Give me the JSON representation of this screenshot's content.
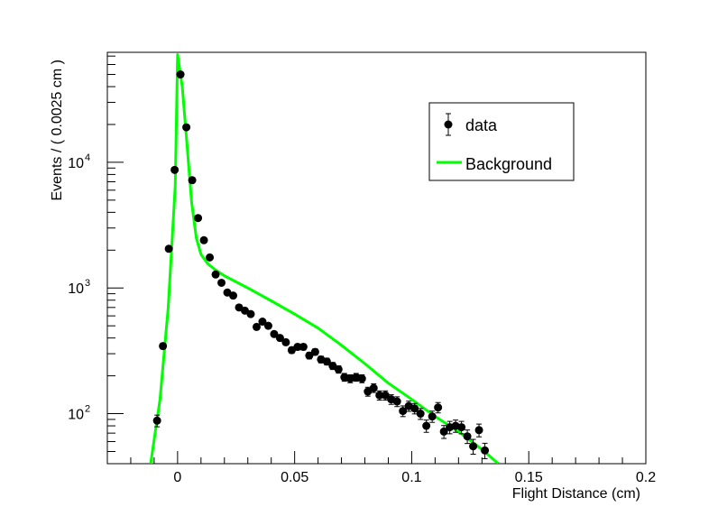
{
  "chart_data": {
    "type": "scatter",
    "title": "",
    "xlabel": "Flight Distance (cm)",
    "ylabel": "Events / ( 0.0025 cm )",
    "xlim": [
      -0.03,
      0.2
    ],
    "ylim": [
      40,
      75000
    ],
    "yscale": "log",
    "x_ticks": [
      0,
      0.05,
      0.1,
      0.15,
      0.2
    ],
    "x_tick_labels": [
      "0",
      "0.05",
      "0.1",
      "0.15",
      "0.2"
    ],
    "y_ticks": [
      100,
      1000,
      10000
    ],
    "y_tick_labels": [
      {
        "base": "10",
        "exp": "2"
      },
      {
        "base": "10",
        "exp": "3"
      },
      {
        "base": "10",
        "exp": "4"
      }
    ],
    "grid": false,
    "legend": {
      "position": "top-right",
      "entries": [
        {
          "label": "data",
          "marker": "circle-with-error",
          "color": "#000000"
        },
        {
          "label": "Background",
          "marker": "line",
          "color": "#00ff00"
        }
      ]
    },
    "series": [
      {
        "name": "data",
        "color": "#000000",
        "points": [
          [
            -0.00875,
            88
          ],
          [
            -0.00625,
            345
          ],
          [
            -0.00375,
            2050
          ],
          [
            -0.00125,
            8700
          ],
          [
            0.00125,
            50000
          ],
          [
            0.00375,
            19000
          ],
          [
            0.00625,
            7200
          ],
          [
            0.00875,
            3600
          ],
          [
            0.01125,
            2400
          ],
          [
            0.01375,
            1750
          ],
          [
            0.01625,
            1280
          ],
          [
            0.01875,
            1100
          ],
          [
            0.02125,
            920
          ],
          [
            0.02375,
            870
          ],
          [
            0.02625,
            700
          ],
          [
            0.02875,
            660
          ],
          [
            0.03125,
            620
          ],
          [
            0.03375,
            490
          ],
          [
            0.03625,
            540
          ],
          [
            0.03875,
            500
          ],
          [
            0.04125,
            430
          ],
          [
            0.04375,
            400
          ],
          [
            0.04625,
            370
          ],
          [
            0.04875,
            320
          ],
          [
            0.05125,
            340
          ],
          [
            0.05375,
            340
          ],
          [
            0.05625,
            290
          ],
          [
            0.05875,
            310
          ],
          [
            0.06125,
            270
          ],
          [
            0.06375,
            260
          ],
          [
            0.06625,
            240
          ],
          [
            0.06875,
            225
          ],
          [
            0.07125,
            195
          ],
          [
            0.07375,
            190
          ],
          [
            0.07625,
            195
          ],
          [
            0.07875,
            190
          ],
          [
            0.08125,
            150
          ],
          [
            0.08375,
            160
          ],
          [
            0.08625,
            140
          ],
          [
            0.08875,
            140
          ],
          [
            0.09125,
            130
          ],
          [
            0.09375,
            125
          ],
          [
            0.09625,
            105
          ],
          [
            0.09875,
            115
          ],
          [
            0.10125,
            110
          ],
          [
            0.10375,
            100
          ],
          [
            0.10625,
            80
          ],
          [
            0.10875,
            95
          ],
          [
            0.11125,
            112
          ],
          [
            0.11375,
            72
          ],
          [
            0.11625,
            78
          ],
          [
            0.11875,
            80
          ],
          [
            0.12125,
            78
          ],
          [
            0.12375,
            66
          ],
          [
            0.12625,
            55
          ],
          [
            0.12875,
            74
          ],
          [
            0.13125,
            51
          ]
        ]
      },
      {
        "name": "Background",
        "color": "#00ff00",
        "points": [
          [
            -0.0115,
            40
          ],
          [
            -0.0075,
            130
          ],
          [
            -0.004,
            700
          ],
          [
            -0.001,
            6500
          ],
          [
            0.0,
            72000
          ],
          [
            0.002,
            40000
          ],
          [
            0.004,
            14000
          ],
          [
            0.006,
            4800
          ],
          [
            0.008,
            2500
          ],
          [
            0.01,
            1850
          ],
          [
            0.013,
            1550
          ],
          [
            0.016,
            1400
          ],
          [
            0.02,
            1250
          ],
          [
            0.03,
            1000
          ],
          [
            0.04,
            790
          ],
          [
            0.05,
            620
          ],
          [
            0.06,
            480
          ],
          [
            0.07,
            350
          ],
          [
            0.08,
            250
          ],
          [
            0.09,
            175
          ],
          [
            0.1,
            130
          ],
          [
            0.11,
            95
          ],
          [
            0.12,
            72
          ],
          [
            0.13,
            52
          ],
          [
            0.137,
            40
          ]
        ]
      }
    ]
  }
}
